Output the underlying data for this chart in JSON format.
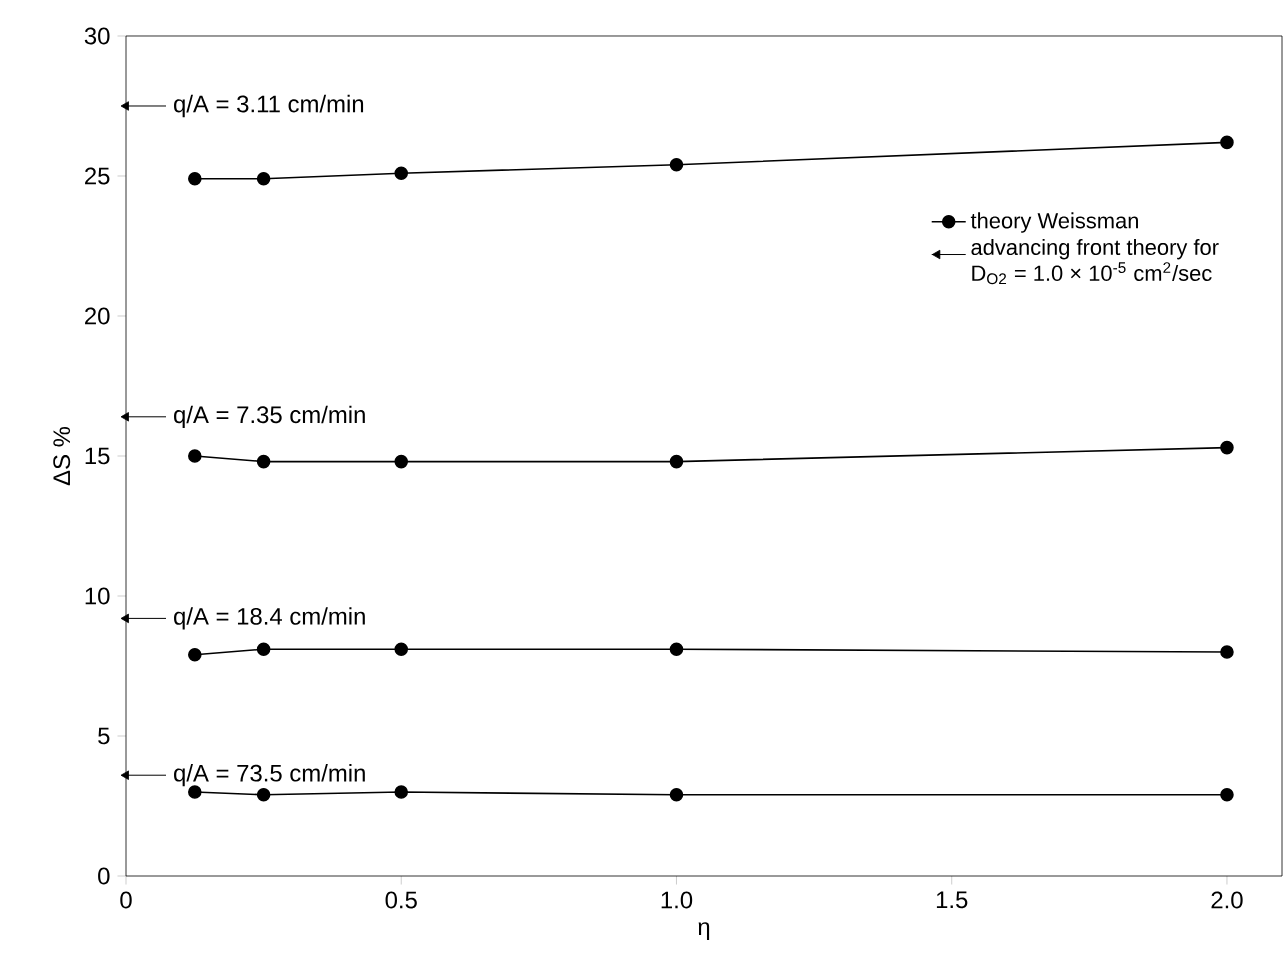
{
  "chart_data": {
    "type": "line",
    "xlabel": "η",
    "ylabel": "ΔS %",
    "xlim": [
      0,
      2.1
    ],
    "ylim": [
      0,
      30
    ],
    "xticks": [
      0,
      {
        "value": 0.5,
        "label": "0.5"
      },
      {
        "value": 1.0,
        "label": "1.0"
      },
      {
        "value": 1.5,
        "label": "1.5"
      },
      {
        "value": 2.0,
        "label": "2.0"
      }
    ],
    "yticks": [
      0,
      5,
      10,
      15,
      20,
      25,
      30
    ],
    "marker": "circle",
    "grid": false,
    "legend": "top right",
    "series": [
      {
        "name": "theory Weissman",
        "color": "#000000",
        "x": [
          0.125,
          0.25,
          0.5,
          1.0,
          2.0
        ],
        "values": [
          24.9,
          24.9,
          25.1,
          25.4,
          26.2
        ]
      },
      {
        "color": "#000000",
        "x": [
          0.125,
          0.25,
          0.5,
          1.0,
          2.0
        ],
        "values": [
          15.0,
          14.8,
          14.8,
          14.8,
          15.3
        ]
      },
      {
        "color": "#000000",
        "x": [
          0.125,
          0.25,
          0.5,
          1.0,
          2.0
        ],
        "values": [
          7.9,
          8.1,
          8.1,
          8.1,
          8.0
        ]
      },
      {
        "color": "#000000",
        "x": [
          0.125,
          0.25,
          0.5,
          1.0,
          2.0
        ],
        "values": [
          3.0,
          2.9,
          3.0,
          2.9,
          2.9
        ]
      },
      {
        "name": "advancing front theory for D$_{O2}$ = 1.0 × 10$^{-5}$ cm$^{2}$/sec",
        "type": "scatter",
        "marker": "triangle",
        "color": "#000000",
        "x": [
          0,
          0,
          0,
          0
        ],
        "values": [
          27.5,
          16.4,
          9.2,
          3.6
        ]
      }
    ],
    "annotations": [
      "q/A = 3.11 cm/min",
      "q/A = 7.35 cm/min",
      "q/A = 18.4 cm/min",
      "q/A = 73.5 cm/min"
    ]
  }
}
